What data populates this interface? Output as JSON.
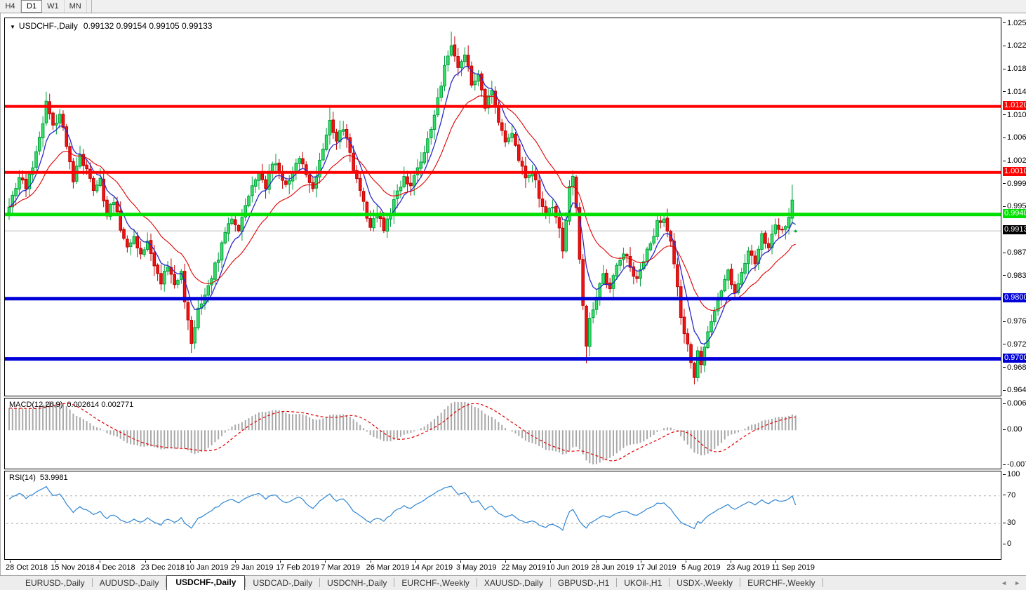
{
  "toolbar": {
    "timeframes": [
      {
        "label": "H4",
        "active": false
      },
      {
        "label": "D1",
        "active": true
      },
      {
        "label": "W1",
        "active": false
      },
      {
        "label": "MN",
        "active": false
      }
    ]
  },
  "chart": {
    "title_symbol": "USDCHF-,Daily",
    "title_ohlc": "0.99132 0.99154 0.99105 0.99133"
  },
  "indicators": {
    "macd_label": "MACD(12,26,9)",
    "macd_values": "0.002614 0.002771",
    "rsi_label": "RSI(14)",
    "rsi_value": "53.9981"
  },
  "tabs": {
    "items": [
      {
        "label": "EURUSD-,Daily",
        "active": false
      },
      {
        "label": "AUDUSD-,Daily",
        "active": false
      },
      {
        "label": "USDCHF-,Daily",
        "active": true
      },
      {
        "label": "USDCAD-,Daily",
        "active": false
      },
      {
        "label": "USDCNH-,Daily",
        "active": false
      },
      {
        "label": "EURCHF-,Weekly",
        "active": false
      },
      {
        "label": "XAUUSD-,Daily",
        "active": false
      },
      {
        "label": "GBPUSD-,H1",
        "active": false
      },
      {
        "label": "UKOil-,H1",
        "active": false
      },
      {
        "label": "USDX-,Weekly",
        "active": false
      },
      {
        "label": "EURCHF-,Weekly",
        "active": false
      }
    ],
    "scroll_left_icon": "◄",
    "scroll_right_icon": "►"
  },
  "chart_data": {
    "type": "candlestick",
    "title": "USDCHF-,Daily",
    "bars": 234,
    "price_range": {
      "top": 1.02673,
      "bottom": 0.96389
    },
    "last_bar_ohlc": [
      0.99132,
      0.99154,
      0.99105,
      0.99133
    ],
    "price_anchors": [
      [
        0,
        0.9958
      ],
      [
        3,
        1.0005
      ],
      [
        5,
        0.9985
      ],
      [
        8,
        1.004
      ],
      [
        11,
        1.0125
      ],
      [
        13,
        1.0085
      ],
      [
        15,
        1.0105
      ],
      [
        17,
        1.0055
      ],
      [
        19,
        1.0
      ],
      [
        21,
        1.004
      ],
      [
        23,
        1.0015
      ],
      [
        25,
        0.9985
      ],
      [
        27,
        0.9995
      ],
      [
        29,
        0.994
      ],
      [
        31,
        0.9965
      ],
      [
        33,
        0.992
      ],
      [
        35,
        0.989
      ],
      [
        37,
        0.9905
      ],
      [
        39,
        0.987
      ],
      [
        41,
        0.9895
      ],
      [
        43,
        0.986
      ],
      [
        45,
        0.983
      ],
      [
        47,
        0.9855
      ],
      [
        49,
        0.9825
      ],
      [
        51,
        0.9845
      ],
      [
        52,
        0.98
      ],
      [
        54,
        0.9725
      ],
      [
        56,
        0.978
      ],
      [
        58,
        0.981
      ],
      [
        60,
        0.984
      ],
      [
        62,
        0.987
      ],
      [
        64,
        0.9905
      ],
      [
        66,
        0.9935
      ],
      [
        68,
        0.9915
      ],
      [
        70,
        0.996
      ],
      [
        72,
        0.999
      ],
      [
        74,
        1.0005
      ],
      [
        76,
        0.9985
      ],
      [
        78,
        1.003
      ],
      [
        80,
        1.001
      ],
      [
        82,
        0.999
      ],
      [
        84,
        1.0015
      ],
      [
        86,
        1.0035
      ],
      [
        88,
        1.0005
      ],
      [
        90,
        0.9985
      ],
      [
        93,
        1.005
      ],
      [
        95,
        1.01
      ],
      [
        97,
        1.0065
      ],
      [
        99,
        1.0085
      ],
      [
        101,
        1.004
      ],
      [
        103,
        0.9995
      ],
      [
        105,
        0.996
      ],
      [
        107,
        0.992
      ],
      [
        109,
        0.9945
      ],
      [
        111,
        0.9915
      ],
      [
        113,
        0.9945
      ],
      [
        115,
        0.9975
      ],
      [
        117,
        1.0
      ],
      [
        119,
        0.9985
      ],
      [
        121,
        1.0015
      ],
      [
        123,
        1.0045
      ],
      [
        125,
        1.008
      ],
      [
        127,
        1.013
      ],
      [
        129,
        1.019
      ],
      [
        131,
        1.0225
      ],
      [
        133,
        1.0185
      ],
      [
        135,
        1.021
      ],
      [
        137,
        1.016
      ],
      [
        139,
        1.0175
      ],
      [
        141,
        1.012
      ],
      [
        143,
        1.0145
      ],
      [
        145,
        1.0095
      ],
      [
        147,
        1.006
      ],
      [
        149,
        1.008
      ],
      [
        151,
        1.0035
      ],
      [
        153,
        1.0
      ],
      [
        155,
        1.0015
      ],
      [
        157,
        0.997
      ],
      [
        159,
        0.9935
      ],
      [
        161,
        0.9955
      ],
      [
        163,
        0.9915
      ],
      [
        164,
        0.988
      ],
      [
        166,
        0.999
      ],
      [
        167,
        1.0
      ],
      [
        168,
        0.9955
      ],
      [
        169,
        0.987
      ],
      [
        170,
        0.979
      ],
      [
        171,
        0.9725
      ],
      [
        172,
        0.9765
      ],
      [
        174,
        0.9805
      ],
      [
        176,
        0.984
      ],
      [
        178,
        0.982
      ],
      [
        180,
        0.9855
      ],
      [
        182,
        0.988
      ],
      [
        184,
        0.9855
      ],
      [
        186,
        0.983
      ],
      [
        188,
        0.986
      ],
      [
        190,
        0.9895
      ],
      [
        192,
        0.9925
      ],
      [
        194,
        0.9935
      ],
      [
        196,
        0.9895
      ],
      [
        197,
        0.986
      ],
      [
        198,
        0.9815
      ],
      [
        199,
        0.9765
      ],
      [
        201,
        0.972
      ],
      [
        203,
        0.9672
      ],
      [
        204,
        0.971
      ],
      [
        205,
        0.969
      ],
      [
        207,
        0.9745
      ],
      [
        209,
        0.978
      ],
      [
        211,
        0.9815
      ],
      [
        213,
        0.9845
      ],
      [
        215,
        0.9805
      ],
      [
        217,
        0.9845
      ],
      [
        219,
        0.9885
      ],
      [
        221,
        0.986
      ],
      [
        223,
        0.991
      ],
      [
        225,
        0.9885
      ],
      [
        227,
        0.9925
      ],
      [
        229,
        0.991
      ],
      [
        231,
        0.994
      ],
      [
        232,
        0.9965
      ],
      [
        233,
        0.99133
      ]
    ],
    "spike_highs": {
      "11": 1.0145,
      "95": 1.0122,
      "131": 1.0245,
      "232": 0.999
    },
    "spike_lows": {
      "54": 0.9713,
      "171": 0.9693,
      "203": 0.9659
    },
    "y_ticks": [
      "1.02580",
      "1.02200",
      "1.01820",
      "1.01440",
      "1.01050",
      "1.00670",
      "1.00290",
      "0.99910",
      "0.99530",
      "0.98760",
      "0.98380",
      "0.97610",
      "0.97230",
      "0.96850",
      "0.96470"
    ],
    "levels": [
      {
        "price": 1.01205,
        "label": "1.01205",
        "color": "#ff0000",
        "thickness": 4
      },
      {
        "price": 1.00106,
        "label": "1.00106",
        "color": "#ff0000",
        "thickness": 4
      },
      {
        "price": 0.99406,
        "label": "0.99406",
        "color": "#00e000",
        "thickness": 5
      },
      {
        "price": 0.98004,
        "label": "0.98004",
        "color": "#0000d8",
        "thickness": 5
      },
      {
        "price": 0.97001,
        "label": "0.97001",
        "color": "#0000d8",
        "thickness": 5
      }
    ],
    "current_price": {
      "value": 0.99133,
      "label": "0.99133",
      "tag_color": "#000000",
      "line_color": "#c0c0c0"
    },
    "x_labels": [
      "28 Oct 2018",
      "15 Nov 2018",
      "4 Dec 2018",
      "23 Dec 2018",
      "10 Jan 2019",
      "29 Jan 2019",
      "17 Feb 2019",
      "7 Mar 2019",
      "26 Mar 2019",
      "14 Apr 2019",
      "3 May 2019",
      "22 May 2019",
      "10 Jun 2019",
      "28 Jun 2019",
      "17 Jul 2019",
      "5 Aug 2019",
      "23 Aug 2019",
      "11 Sep 2019"
    ],
    "macd": {
      "fast": 12,
      "slow": 26,
      "signal": 9,
      "axis_max": "0.006286",
      "axis_zero": "0.00",
      "axis_min": "-0.00762"
    },
    "rsi": {
      "period": 14,
      "levels": [
        70,
        30
      ],
      "axis": [
        "100",
        "70",
        "30",
        "0"
      ]
    },
    "colors": {
      "bull_fill": "#37df66",
      "bull_stroke": "#009e3c",
      "bear_fill": "#f01414",
      "bear_stroke": "#c00000",
      "ma_fast": "#2929c8",
      "ma_slow": "#e00000",
      "macd_hist": "#a8a8a8",
      "macd_signal": "#e00000",
      "rsi_line": "#2e86d5",
      "rsi_level": "#b0b0b0"
    }
  }
}
